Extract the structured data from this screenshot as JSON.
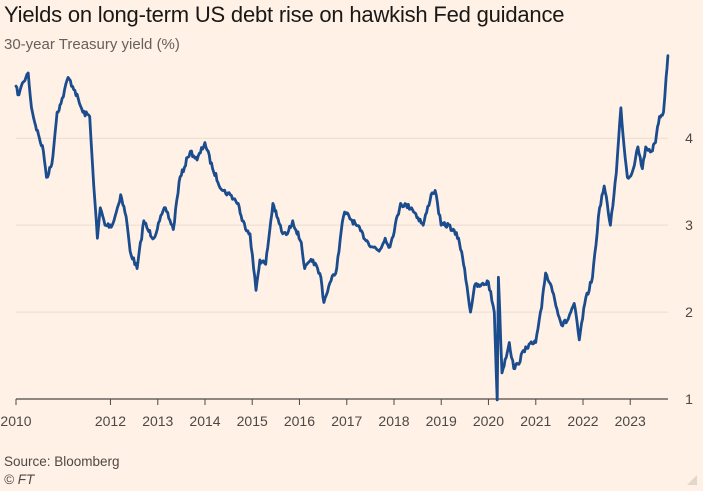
{
  "chart_data": {
    "type": "line",
    "title": "Yields on long-term US debt rise on hawkish Fed guidance",
    "subtitle": "30-year Treasury yield (%)",
    "xlabel": "",
    "ylabel": "",
    "x_tick_labels": [
      "2010",
      "2012",
      "2013",
      "2014",
      "2015",
      "2016",
      "2017",
      "2018",
      "2019",
      "2020",
      "2021",
      "2022",
      "2023"
    ],
    "y_tick_labels": [
      "1",
      "2",
      "3",
      "4"
    ],
    "xlim": [
      "2010-01-01",
      "2023-10-20"
    ],
    "ylim": [
      1,
      4.9
    ],
    "grid": true,
    "grid_axis": "y",
    "y_axis_side": "right",
    "line_color": "#1B4C8E",
    "series": [
      {
        "x": [
          "2010-01-01",
          "2010-01-15",
          "2010-02-01",
          "2010-03-01",
          "2010-04-05",
          "2010-05-01",
          "2010-06-01",
          "2010-07-01",
          "2010-08-01",
          "2010-08-25",
          "2010-10-05",
          "2010-11-15",
          "2010-12-15",
          "2011-02-08",
          "2011-04-01",
          "2011-06-01",
          "2011-07-25",
          "2011-08-15",
          "2011-09-22",
          "2011-10-15",
          "2011-11-20",
          "2012-01-15",
          "2012-02-15",
          "2012-03-20",
          "2012-05-01",
          "2012-06-01",
          "2012-07-25",
          "2012-09-15",
          "2012-10-15",
          "2012-12-01",
          "2013-01-15",
          "2013-03-01",
          "2013-05-01",
          "2013-06-15",
          "2013-08-20",
          "2013-09-10",
          "2013-11-01",
          "2013-12-31",
          "2014-03-01",
          "2014-05-15",
          "2014-07-15",
          "2014-09-15",
          "2014-10-15",
          "2014-12-15",
          "2015-01-30",
          "2015-03-01",
          "2015-04-15",
          "2015-06-10",
          "2015-07-10",
          "2015-08-25",
          "2015-10-01",
          "2015-11-10",
          "2016-01-15",
          "2016-02-11",
          "2016-04-15",
          "2016-06-15",
          "2016-07-08",
          "2016-08-15",
          "2016-10-15",
          "2016-11-20",
          "2016-12-15",
          "2017-03-15",
          "2017-06-15",
          "2017-09-08",
          "2017-10-25",
          "2017-12-01",
          "2018-02-21",
          "2018-05-17",
          "2018-08-15",
          "2018-10-15",
          "2018-11-15",
          "2018-12-31",
          "2019-03-01",
          "2019-05-15",
          "2019-07-01",
          "2019-08-15",
          "2019-09-15",
          "2019-11-01",
          "2019-12-31",
          "2020-02-15",
          "2020-03-09",
          "2020-03-18",
          "2020-04-15",
          "2020-06-10",
          "2020-07-15",
          "2020-08-15",
          "2020-10-15",
          "2020-12-31",
          "2021-02-15",
          "2021-03-18",
          "2021-05-01",
          "2021-07-19",
          "2021-09-01",
          "2021-10-25",
          "2021-12-03",
          "2022-01-15",
          "2022-03-15",
          "2022-05-09",
          "2022-06-14",
          "2022-08-01",
          "2022-09-15",
          "2022-10-21",
          "2022-11-15",
          "2022-12-10",
          "2023-01-15",
          "2023-03-01",
          "2023-04-05",
          "2023-05-01",
          "2023-06-15",
          "2023-07-15",
          "2023-08-15",
          "2023-09-15",
          "2023-10-05",
          "2023-10-19"
        ],
        "values": [
          4.6,
          4.5,
          4.55,
          4.65,
          4.75,
          4.35,
          4.15,
          4.0,
          3.85,
          3.55,
          3.7,
          4.3,
          4.4,
          4.7,
          4.55,
          4.3,
          4.25,
          3.7,
          2.85,
          3.2,
          3.0,
          3.0,
          3.15,
          3.35,
          3.1,
          2.7,
          2.5,
          3.05,
          2.95,
          2.85,
          3.05,
          3.2,
          2.95,
          3.5,
          3.78,
          3.85,
          3.75,
          3.95,
          3.65,
          3.4,
          3.35,
          3.25,
          3.05,
          2.9,
          2.25,
          2.6,
          2.55,
          3.25,
          3.1,
          2.9,
          2.9,
          3.05,
          2.8,
          2.5,
          2.6,
          2.4,
          2.11,
          2.3,
          2.5,
          2.95,
          3.15,
          3.0,
          2.8,
          2.7,
          2.85,
          2.75,
          3.25,
          3.2,
          3.0,
          3.35,
          3.4,
          3.0,
          3.0,
          2.85,
          2.5,
          2.0,
          2.3,
          2.3,
          2.35,
          2.0,
          0.99,
          2.4,
          1.3,
          1.65,
          1.35,
          1.4,
          1.6,
          1.65,
          2.05,
          2.45,
          2.3,
          1.85,
          1.9,
          2.1,
          1.68,
          2.1,
          2.4,
          3.2,
          3.45,
          3.0,
          3.6,
          4.35,
          3.9,
          3.55,
          3.6,
          3.9,
          3.65,
          3.9,
          3.85,
          3.95,
          4.25,
          4.3,
          4.7,
          4.95
        ]
      }
    ]
  },
  "source_text": "Source: Bloomberg",
  "credit_text": "© FT"
}
